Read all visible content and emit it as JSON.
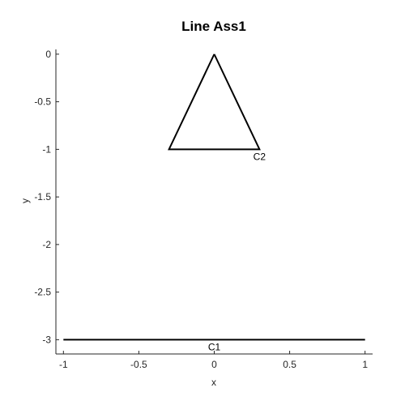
{
  "chart_data": {
    "type": "line",
    "title": "Line Ass1",
    "xlabel": "x",
    "ylabel": "y",
    "xlim": [
      -1.05,
      1.05
    ],
    "ylim": [
      -3.15,
      0.05
    ],
    "x_ticks": [
      -1,
      -0.5,
      0,
      0.5,
      1
    ],
    "x_tick_labels": [
      "-1",
      "-0.5",
      "0",
      "0.5",
      "1"
    ],
    "y_ticks": [
      0,
      -0.5,
      -1,
      -1.5,
      -2,
      -2.5,
      -3
    ],
    "y_tick_labels": [
      "0",
      "-0.5",
      "-1",
      "-1.5",
      "-2",
      "-2.5",
      "-3"
    ],
    "grid": false,
    "series": [
      {
        "x": [
          -1,
          1
        ],
        "y": [
          -3,
          -3
        ],
        "color": "#000000"
      },
      {
        "x": [
          0,
          0.3,
          -0.3,
          0
        ],
        "y": [
          0,
          -1,
          -1,
          0
        ],
        "color": "#000000"
      }
    ],
    "annotations": [
      {
        "text": "C1",
        "x": 0,
        "y": -3
      },
      {
        "text": "C2",
        "x": 0.3,
        "y": -1
      }
    ]
  }
}
